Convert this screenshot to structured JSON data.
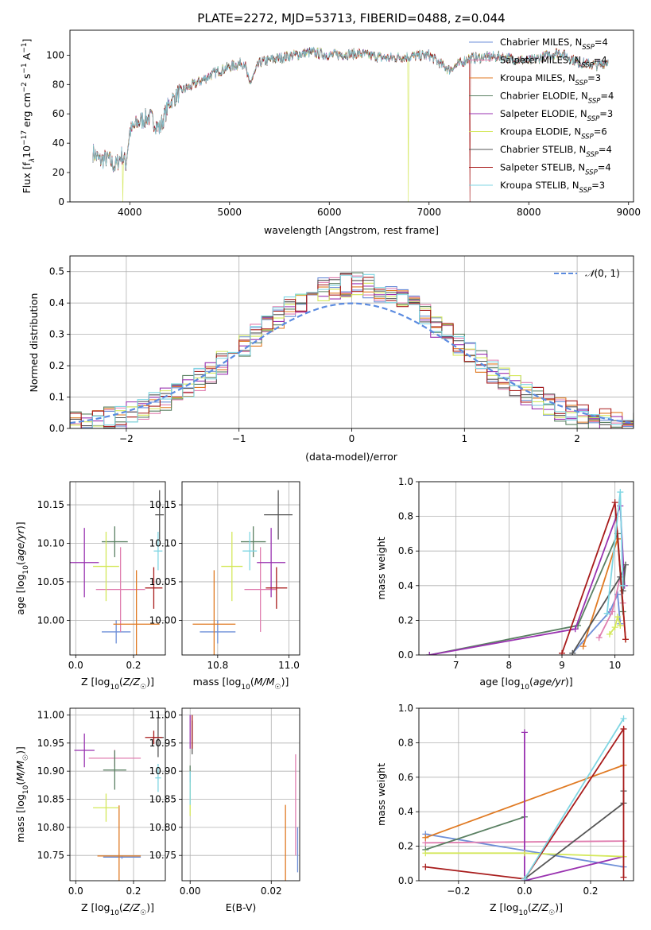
{
  "figure_title": "PLATE=2272, MJD=53713, FIBERID=0488, z=0.044",
  "series_colors": [
    {
      "name": "Chabrier MILES",
      "color": "#6d8fd8"
    },
    {
      "name": "Salpeter MILES",
      "color": "#e07fb0"
    },
    {
      "name": "Kroupa MILES",
      "color": "#e07a23"
    },
    {
      "name": "Chabrier ELODIE",
      "color": "#5a8062"
    },
    {
      "name": "Salpeter ELODIE",
      "color": "#9932b0"
    },
    {
      "name": "Kroupa ELODIE",
      "color": "#d4e85a"
    },
    {
      "name": "Chabrier STELIB",
      "color": "#555555"
    },
    {
      "name": "Salpeter STELIB",
      "color": "#a81c1c"
    },
    {
      "name": "Kroupa STELIB",
      "color": "#7fd6e3"
    }
  ],
  "chart_data": [
    {
      "id": "spectrum",
      "type": "line",
      "xlabel": "wavelength [Angstrom, rest frame]",
      "ylabel": "Flux [f_λ 10^-17 erg cm^-2 s^-1 A^-1]",
      "xlim": [
        3400,
        9050
      ],
      "ylim": [
        0,
        117
      ],
      "xticks": [
        4000,
        5000,
        6000,
        7000,
        8000,
        9000
      ],
      "yticks": [
        0,
        20,
        40,
        60,
        80,
        100
      ],
      "legend_placement": "right",
      "legend": [
        {
          "name": "Chabrier MILES",
          "nssp": "4"
        },
        {
          "name": "Salpeter MILES",
          "nssp": "4"
        },
        {
          "name": "Kroupa MILES",
          "nssp": "3"
        },
        {
          "name": "Chabrier ELODIE",
          "nssp": "4"
        },
        {
          "name": "Salpeter ELODIE",
          "nssp": "3"
        },
        {
          "name": "Kroupa ELODIE",
          "nssp": "6"
        },
        {
          "name": "Chabrier STELIB",
          "nssp": "4"
        },
        {
          "name": "Salpeter STELIB",
          "nssp": "4"
        },
        {
          "name": "Kroupa STELIB",
          "nssp": "3"
        }
      ],
      "continuum": [
        [
          3630,
          34
        ],
        [
          3700,
          28
        ],
        [
          3780,
          30
        ],
        [
          3850,
          24
        ],
        [
          3920,
          32
        ],
        [
          3960,
          26
        ],
        [
          4000,
          48
        ],
        [
          4100,
          55
        ],
        [
          4200,
          58
        ],
        [
          4300,
          50
        ],
        [
          4400,
          68
        ],
        [
          4500,
          75
        ],
        [
          4700,
          82
        ],
        [
          4850,
          88
        ],
        [
          5000,
          92
        ],
        [
          5150,
          95
        ],
        [
          5200,
          80
        ],
        [
          5300,
          95
        ],
        [
          5500,
          98
        ],
        [
          5800,
          102
        ],
        [
          6000,
          100
        ],
        [
          6300,
          101
        ],
        [
          6563,
          98
        ],
        [
          6800,
          99
        ],
        [
          7000,
          100
        ],
        [
          7200,
          90
        ],
        [
          7400,
          98
        ],
        [
          7700,
          99
        ],
        [
          8000,
          96
        ],
        [
          8300,
          102
        ],
        [
          8500,
          95
        ],
        [
          8700,
          93
        ],
        [
          8800,
          96
        ]
      ],
      "dropouts": [
        [
          3930,
          "Kroupa ELODIE"
        ],
        [
          6790,
          "Kroupa ELODIE"
        ],
        [
          7410,
          "Salpeter STELIB"
        ]
      ]
    },
    {
      "id": "residual_hist",
      "type": "histogram",
      "xlabel": "(data-model)/error",
      "ylabel": "Normed distribution",
      "xlim": [
        -2.5,
        2.5
      ],
      "ylim": [
        0,
        0.55
      ],
      "xticks": [
        -2,
        -1,
        0,
        1,
        2
      ],
      "yticks": [
        0.0,
        0.1,
        0.2,
        0.3,
        0.4,
        0.5
      ],
      "grid": true,
      "legend_placement": "top-right",
      "reference_label": "N(0,1)",
      "bin_width": 0.1
    },
    {
      "id": "age_vs_Z",
      "type": "errorbar",
      "xlabel": "Z [log10(Z/Z☉)]",
      "ylabel": "age [log10(age/yr)]",
      "xlim": [
        -0.02,
        0.31
      ],
      "ylim": [
        9.955,
        10.18
      ],
      "xticks": [
        0.0,
        0.2
      ],
      "yticks": [
        10.0,
        10.05,
        10.1,
        10.15
      ],
      "grid": true,
      "points": [
        {
          "series": "Chabrier MILES",
          "x": 0.14,
          "xerr": 0.05,
          "y": 9.985,
          "yerr": 0.015
        },
        {
          "series": "Salpeter MILES",
          "x": 0.155,
          "xerr": 0.085,
          "y": 10.04,
          "yerr": 0.055
        },
        {
          "series": "Kroupa MILES",
          "x": 0.21,
          "xerr": 0.08,
          "y": 9.995,
          "yerr": 0.07
        },
        {
          "series": "Chabrier ELODIE",
          "x": 0.135,
          "xerr": 0.045,
          "y": 10.102,
          "yerr": 0.02
        },
        {
          "series": "Salpeter ELODIE",
          "x": 0.03,
          "xerr": 0.05,
          "y": 10.075,
          "yerr": 0.045
        },
        {
          "series": "Kroupa ELODIE",
          "x": 0.105,
          "xerr": 0.045,
          "y": 10.07,
          "yerr": 0.045
        },
        {
          "series": "Chabrier STELIB",
          "x": 0.29,
          "xerr": 0.015,
          "y": 10.137,
          "yerr": 0.032
        },
        {
          "series": "Salpeter STELIB",
          "x": 0.27,
          "xerr": 0.03,
          "y": 10.042,
          "yerr": 0.027
        },
        {
          "series": "Kroupa STELIB",
          "x": 0.285,
          "xerr": 0.015,
          "y": 10.09,
          "yerr": 0.025
        }
      ]
    },
    {
      "id": "age_vs_mass",
      "type": "errorbar",
      "xlabel": "mass [log10(M/M☉)]",
      "ylabel": "",
      "xlim": [
        10.7,
        11.03
      ],
      "ylim": [
        9.955,
        10.18
      ],
      "xticks": [
        10.8,
        11.0
      ],
      "yticks": [
        10.0,
        10.05,
        10.1,
        10.15
      ],
      "grid": true,
      "points": [
        {
          "series": "Chabrier MILES",
          "x": 10.8,
          "xerr": 0.05,
          "y": 9.985,
          "yerr": 0.015
        },
        {
          "series": "Salpeter MILES",
          "x": 10.92,
          "xerr": 0.045,
          "y": 10.04,
          "yerr": 0.055
        },
        {
          "series": "Kroupa MILES",
          "x": 10.79,
          "xerr": 0.06,
          "y": 9.995,
          "yerr": 0.07
        },
        {
          "series": "Chabrier ELODIE",
          "x": 10.9,
          "xerr": 0.035,
          "y": 10.102,
          "yerr": 0.02
        },
        {
          "series": "Salpeter ELODIE",
          "x": 10.95,
          "xerr": 0.04,
          "y": 10.075,
          "yerr": 0.045
        },
        {
          "series": "Kroupa ELODIE",
          "x": 10.84,
          "xerr": 0.03,
          "y": 10.07,
          "yerr": 0.045
        },
        {
          "series": "Chabrier STELIB",
          "x": 10.97,
          "xerr": 0.04,
          "y": 10.137,
          "yerr": 0.032
        },
        {
          "series": "Salpeter STELIB",
          "x": 10.965,
          "xerr": 0.03,
          "y": 10.042,
          "yerr": 0.027
        },
        {
          "series": "Kroupa STELIB",
          "x": 10.89,
          "xerr": 0.02,
          "y": 10.09,
          "yerr": 0.025
        }
      ]
    },
    {
      "id": "weight_vs_age",
      "type": "line",
      "xlabel": "age [log10(age/yr)]",
      "ylabel": "mass weight",
      "xlim": [
        6.3,
        10.35
      ],
      "ylim": [
        0,
        1
      ],
      "xticks": [
        7,
        8,
        9,
        10
      ],
      "yticks": [
        0.0,
        0.2,
        0.4,
        0.6,
        0.8,
        1.0
      ],
      "grid": true,
      "series": [
        {
          "name": "Chabrier MILES",
          "points": [
            [
              9.2,
              0.01
            ],
            [
              9.9,
              0.25
            ],
            [
              10.05,
              0.35
            ],
            [
              10.1,
              0.18
            ]
          ]
        },
        {
          "name": "Salpeter MILES",
          "points": [
            [
              9.7,
              0.1
            ],
            [
              9.95,
              0.25
            ],
            [
              10.1,
              0.45
            ],
            [
              10.15,
              0.3
            ]
          ]
        },
        {
          "name": "Kroupa MILES",
          "points": [
            [
              9.4,
              0.05
            ],
            [
              10.05,
              0.67
            ],
            [
              10.2,
              0.09
            ]
          ]
        },
        {
          "name": "Chabrier ELODIE",
          "points": [
            [
              6.5,
              0.0
            ],
            [
              9.3,
              0.17
            ],
            [
              10.05,
              0.7
            ],
            [
              10.15,
              0.25
            ]
          ]
        },
        {
          "name": "Salpeter ELODIE",
          "points": [
            [
              6.5,
              0.0
            ],
            [
              9.25,
              0.15
            ],
            [
              10.1,
              0.86
            ],
            [
              10.18,
              0.4
            ]
          ]
        },
        {
          "name": "Kroupa ELODIE",
          "points": [
            [
              9.9,
              0.12
            ],
            [
              10.0,
              0.16
            ],
            [
              10.05,
              0.22
            ],
            [
              10.1,
              0.17
            ]
          ]
        },
        {
          "name": "Chabrier STELIB",
          "points": [
            [
              9.2,
              0.01
            ],
            [
              10.1,
              0.45
            ],
            [
              10.2,
              0.52
            ],
            [
              10.15,
              0.37
            ]
          ]
        },
        {
          "name": "Salpeter STELIB",
          "points": [
            [
              9.0,
              0.01
            ],
            [
              10.0,
              0.88
            ],
            [
              10.2,
              0.09
            ]
          ]
        },
        {
          "name": "Kroupa STELIB",
          "points": [
            [
              9.85,
              0.24
            ],
            [
              10.1,
              0.94
            ],
            [
              10.15,
              0.4
            ]
          ]
        }
      ]
    },
    {
      "id": "mass_vs_Z",
      "type": "errorbar",
      "xlabel": "Z [log10(Z/Z☉)]",
      "ylabel": "mass [log10(M/M☉)]",
      "xlim": [
        -0.02,
        0.31
      ],
      "ylim": [
        10.705,
        11.012
      ],
      "xticks": [
        0.0,
        0.2
      ],
      "yticks": [
        10.75,
        10.8,
        10.85,
        10.9,
        10.95,
        11.0
      ],
      "grid": true,
      "points": [
        {
          "series": "Chabrier MILES",
          "x": 0.16,
          "xerr": 0.065,
          "y": 10.747,
          "yerr": 0.003
        },
        {
          "series": "Salpeter MILES",
          "x": 0.135,
          "xerr": 0.09,
          "y": 10.923,
          "yerr": 0.015
        },
        {
          "series": "Kroupa MILES",
          "x": 0.15,
          "xerr": 0.075,
          "y": 10.749,
          "yerr": 0.09
        },
        {
          "series": "Chabrier ELODIE",
          "x": 0.135,
          "xerr": 0.04,
          "y": 10.902,
          "yerr": 0.035
        },
        {
          "series": "Salpeter ELODIE",
          "x": 0.03,
          "xerr": 0.035,
          "y": 10.937,
          "yerr": 0.03
        },
        {
          "series": "Kroupa ELODIE",
          "x": 0.105,
          "xerr": 0.045,
          "y": 10.835,
          "yerr": 0.025
        },
        {
          "series": "Chabrier STELIB",
          "x": 0.285,
          "xerr": 0.02,
          "y": 10.96,
          "yerr": 0.035
        },
        {
          "series": "Salpeter STELIB",
          "x": 0.27,
          "xerr": 0.03,
          "y": 10.96,
          "yerr": 0.012
        },
        {
          "series": "Kroupa STELIB",
          "x": 0.285,
          "xerr": 0.01,
          "y": 10.888,
          "yerr": 0.025
        }
      ]
    },
    {
      "id": "mass_vs_ebv",
      "type": "errorbar",
      "xlabel": "E(B-V)",
      "ylabel": "",
      "xlim": [
        -0.002,
        0.027
      ],
      "ylim": [
        10.705,
        11.012
      ],
      "xticks": [
        0.0,
        0.02
      ],
      "yticks": [
        10.75,
        10.8,
        10.85,
        10.9,
        10.95,
        11.0
      ],
      "grid": true,
      "points": [
        {
          "series": "Chabrier MILES",
          "x": 0.0265,
          "xerr": 0.0,
          "y": 10.76,
          "yerr": 0.04
        },
        {
          "series": "Salpeter MILES",
          "x": 0.026,
          "xerr": 0.0,
          "y": 10.84,
          "yerr": 0.09
        },
        {
          "series": "Kroupa MILES",
          "x": 0.0235,
          "xerr": 0.0,
          "y": 10.77,
          "yerr": 0.07
        },
        {
          "series": "Chabrier ELODIE",
          "x": 0.0,
          "xerr": 0.0,
          "y": 10.88,
          "yerr": 0.03
        },
        {
          "series": "Salpeter ELODIE",
          "x": 0.0,
          "xerr": 0.0,
          "y": 10.97,
          "yerr": 0.03
        },
        {
          "series": "Kroupa ELODIE",
          "x": 0.0,
          "xerr": 0.0,
          "y": 10.85,
          "yerr": 0.03
        },
        {
          "series": "Chabrier STELIB",
          "x": 0.0005,
          "xerr": 0.0,
          "y": 10.96,
          "yerr": 0.03
        },
        {
          "series": "Salpeter STELIB",
          "x": 0.0005,
          "xerr": 0.0,
          "y": 10.97,
          "yerr": 0.03
        },
        {
          "series": "Kroupa STELIB",
          "x": 0.0,
          "xerr": 0.0,
          "y": 10.87,
          "yerr": 0.03
        }
      ]
    },
    {
      "id": "weight_vs_Z",
      "type": "line",
      "xlabel": "Z [log10(Z/Z☉)]",
      "ylabel": "mass weight",
      "xlim": [
        -0.32,
        0.33
      ],
      "ylim": [
        0,
        1
      ],
      "xticks": [
        -0.2,
        0.0,
        0.2
      ],
      "yticks": [
        0.0,
        0.2,
        0.4,
        0.6,
        0.8,
        1.0
      ],
      "grid": true,
      "series": [
        {
          "name": "Chabrier MILES",
          "points": [
            [
              -0.3,
              0.27
            ],
            [
              0.3,
              0.08
            ]
          ]
        },
        {
          "name": "Salpeter MILES",
          "points": [
            [
              -0.3,
              0.22
            ],
            [
              0.3,
              0.23
            ]
          ]
        },
        {
          "name": "Kroupa MILES",
          "points": [
            [
              -0.3,
              0.25
            ],
            [
              0.3,
              0.67
            ]
          ]
        },
        {
          "name": "Chabrier ELODIE",
          "points": [
            [
              -0.3,
              0.18
            ],
            [
              0.0,
              0.37
            ]
          ]
        },
        {
          "name": "Salpeter ELODIE",
          "points": [
            [
              0.0,
              0.86
            ],
            [
              0.0,
              0.0
            ],
            [
              0.3,
              0.14
            ]
          ]
        },
        {
          "name": "Kroupa ELODIE",
          "points": [
            [
              -0.3,
              0.16
            ],
            [
              0.0,
              0.16
            ],
            [
              0.3,
              0.14
            ]
          ]
        },
        {
          "name": "Chabrier STELIB",
          "points": [
            [
              0.0,
              0.01
            ],
            [
              0.3,
              0.45
            ],
            [
              0.3,
              0.52
            ]
          ]
        },
        {
          "name": "Salpeter STELIB",
          "points": [
            [
              -0.3,
              0.08
            ],
            [
              0.0,
              0.01
            ],
            [
              0.3,
              0.88
            ],
            [
              0.3,
              0.02
            ]
          ]
        },
        {
          "name": "Kroupa STELIB",
          "points": [
            [
              0.0,
              0.01
            ],
            [
              0.3,
              0.94
            ]
          ]
        }
      ]
    }
  ]
}
